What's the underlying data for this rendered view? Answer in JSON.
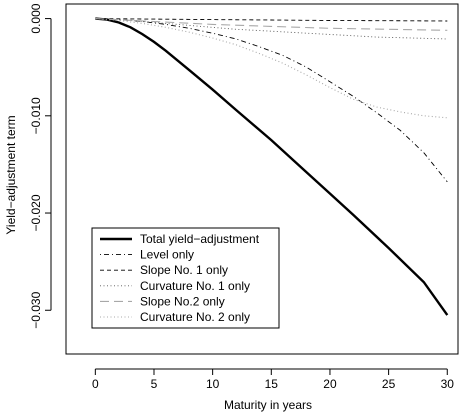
{
  "chart_data": {
    "type": "line",
    "title": "",
    "xlabel": "Maturity in years",
    "ylabel": "Yield−adjustment term",
    "xlim": [
      -2.5,
      31
    ],
    "ylim": [
      -0.0345,
      0.0015
    ],
    "x_ticks": [
      0,
      5,
      10,
      15,
      20,
      25,
      30
    ],
    "x_tick_labels": [
      "0",
      "5",
      "10",
      "15",
      "20",
      "25",
      "30"
    ],
    "y_ticks": [
      0.0,
      -0.01,
      -0.02,
      -0.03
    ],
    "y_tick_labels": [
      "0.000",
      "−0.010",
      "−0.020",
      "−0.030"
    ],
    "grid": false,
    "legend_position": "bottom-left",
    "series": [
      {
        "name": "Total yield−adjustment",
        "dash": "solid",
        "width": 2.4,
        "color": "#000000",
        "x": [
          0,
          1,
          2,
          3,
          4,
          5,
          6,
          8,
          10,
          12,
          15,
          18,
          20,
          22,
          25,
          28,
          30
        ],
        "y": [
          0,
          -0.0001,
          -0.0004,
          -0.0009,
          -0.0016,
          -0.0024,
          -0.0033,
          -0.0053,
          -0.0073,
          -0.0094,
          -0.0125,
          -0.0158,
          -0.018,
          -0.0202,
          -0.0236,
          -0.0271,
          -0.0305
        ]
      },
      {
        "name": "Level only",
        "dash": "dotdash",
        "width": 0.9,
        "color": "#000000",
        "x": [
          0,
          2,
          4,
          6,
          8,
          10,
          12,
          14,
          16,
          18,
          20,
          22,
          24,
          26,
          28,
          30
        ],
        "y": [
          0,
          -0.0001,
          -0.0003,
          -0.0006,
          -0.001,
          -0.0015,
          -0.0021,
          -0.0029,
          -0.0038,
          -0.005,
          -0.0065,
          -0.008,
          -0.0097,
          -0.0115,
          -0.0138,
          -0.0168
        ]
      },
      {
        "name": "Slope No. 1 only",
        "dash": "dashed",
        "width": 0.9,
        "color": "#000000",
        "x": [
          0,
          5,
          10,
          15,
          20,
          25,
          30
        ],
        "y": [
          0,
          -5e-05,
          -0.0001,
          -0.00015,
          -0.0002,
          -0.00022,
          -0.00025
        ]
      },
      {
        "name": "Curvature No. 1 only",
        "dash": "dotted",
        "width": 0.9,
        "color": "#555555",
        "x": [
          0,
          3,
          6,
          9,
          12,
          15,
          18,
          21,
          24,
          27,
          30
        ],
        "y": [
          0,
          -0.0002,
          -0.0005,
          -0.0008,
          -0.0011,
          -0.0013,
          -0.0015,
          -0.0017,
          -0.0019,
          -0.002,
          -0.0021
        ]
      },
      {
        "name": "Slope No.2 only",
        "dash": "longdash",
        "width": 1.1,
        "color": "#a8a8a8",
        "x": [
          0,
          5,
          10,
          15,
          20,
          25,
          30
        ],
        "y": [
          0,
          -0.0003,
          -0.0006,
          -0.0008,
          -0.001,
          -0.0011,
          -0.0012
        ]
      },
      {
        "name": "Curvature No. 2 only",
        "dash": "dotted",
        "width": 1.1,
        "color": "#a8a8a8",
        "x": [
          0,
          2,
          4,
          6,
          8,
          10,
          12,
          14,
          16,
          18,
          20,
          22,
          24,
          26,
          28,
          30
        ],
        "y": [
          0,
          -0.0002,
          -0.0005,
          -0.0009,
          -0.0014,
          -0.002,
          -0.0027,
          -0.0036,
          -0.0046,
          -0.0058,
          -0.0071,
          -0.0083,
          -0.0091,
          -0.0096,
          -0.01,
          -0.0102
        ]
      }
    ]
  }
}
